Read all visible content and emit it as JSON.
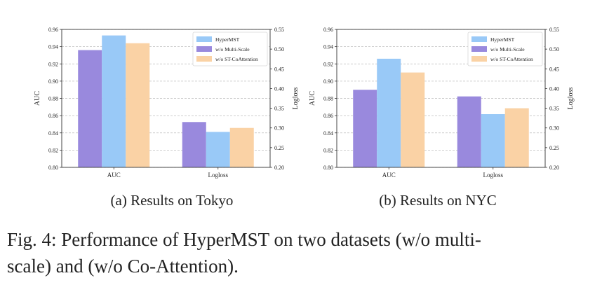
{
  "figure": {
    "caption_line1": "Fig. 4: Performance of HyperMST on two datasets (w/o multi-",
    "caption_line2": "scale) and (w/o Co-Attention).",
    "colors": {
      "HyperMST": "#99c9f7",
      "w/o Multi-Scale": "#9989dd",
      "w/o ST-CoAttention": "#fad2a5"
    }
  },
  "chart_data": [
    {
      "type": "bar",
      "subcaption": "(a) Results on Tokyo",
      "categories": [
        "AUC",
        "Logloss"
      ],
      "series_order_in_group": [
        "w/o Multi-Scale",
        "HyperMST",
        "w/o ST-CoAttention"
      ],
      "series": [
        {
          "name": "HyperMST",
          "values": [
            0.953,
            0.29
          ]
        },
        {
          "name": "w/o Multi-Scale",
          "values": [
            0.936,
            0.315
          ]
        },
        {
          "name": "w/o ST-CoAttention",
          "values": [
            0.944,
            0.3
          ]
        }
      ],
      "ylabel": "AUC",
      "y2label": "Logloss",
      "ylim": [
        0.8,
        0.96
      ],
      "y2lim": [
        0.2,
        0.55
      ],
      "yticks": [
        "0.80",
        "0.82",
        "0.84",
        "0.86",
        "0.88",
        "0.90",
        "0.92",
        "0.94",
        "0.96"
      ],
      "y2ticks": [
        "0.20",
        "0.25",
        "0.30",
        "0.35",
        "0.40",
        "0.45",
        "0.50",
        "0.55"
      ],
      "axis_for_category": {
        "AUC": "left",
        "Logloss": "right"
      },
      "legend": "top-right",
      "grid": "dashed-horizontal"
    },
    {
      "type": "bar",
      "subcaption": "(b) Results on NYC",
      "categories": [
        "AUC",
        "Logloss"
      ],
      "series_order_in_group": [
        "w/o Multi-Scale",
        "HyperMST",
        "w/o ST-CoAttention"
      ],
      "series": [
        {
          "name": "HyperMST",
          "values": [
            0.926,
            0.335
          ]
        },
        {
          "name": "w/o Multi-Scale",
          "values": [
            0.89,
            0.38
          ]
        },
        {
          "name": "w/o ST-CoAttention",
          "values": [
            0.91,
            0.35
          ]
        }
      ],
      "ylabel": "AUC",
      "y2label": "Logloss",
      "ylim": [
        0.8,
        0.96
      ],
      "y2lim": [
        0.2,
        0.55
      ],
      "yticks": [
        "0.80",
        "0.82",
        "0.84",
        "0.86",
        "0.88",
        "0.90",
        "0.92",
        "0.94",
        "0.96"
      ],
      "y2ticks": [
        "0.20",
        "0.25",
        "0.30",
        "0.35",
        "0.40",
        "0.45",
        "0.50",
        "0.55"
      ],
      "axis_for_category": {
        "AUC": "left",
        "Logloss": "right"
      },
      "legend": "top-right",
      "grid": "dashed-horizontal"
    }
  ],
  "legend_labels": [
    "HyperMST",
    "w/o Multi-Scale",
    "w/o ST-CoAttention"
  ]
}
